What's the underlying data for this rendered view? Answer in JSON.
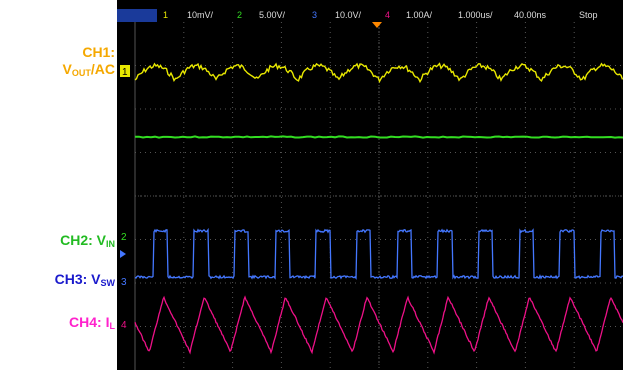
{
  "labels": {
    "ch1_line1": "CH1:",
    "ch1_v": "V",
    "ch1_sub": "OUT",
    "ch1_tail": "/AC",
    "ch2_main": "CH2: V",
    "ch2_sub": "IN",
    "ch3_main": "CH3: V",
    "ch3_sub": "SW",
    "ch4_main": "CH4: I",
    "ch4_sub": "L"
  },
  "header": {
    "ch1_num": "1",
    "ch1_scale": "10mV/",
    "ch2_num": "2",
    "ch2_scale": "5.00V/",
    "ch3_num": "3",
    "ch3_scale": "10.0V/",
    "ch4_num": "4",
    "ch4_scale": "1.00A/",
    "timebase": "1.000us/",
    "delay": "40.00ns",
    "run_state": "Stop"
  },
  "markers": {
    "ch1": "1",
    "ch2": "2",
    "ch3": "3",
    "ch4": "4"
  },
  "colors": {
    "ch1": "#e8e800",
    "ch2": "#33dd22",
    "ch3": "#4477ff",
    "ch4": "#ee1188",
    "label_ch1": "#f5a800",
    "label_ch2": "#22bb22",
    "label_ch3": "#1a1acc",
    "label_ch4": "#ff22cc",
    "grid": "#555555"
  },
  "waveforms": {
    "switching_periods": 12,
    "ch3_duty": 0.35,
    "ch4_peak_fraction": 0.35
  }
}
